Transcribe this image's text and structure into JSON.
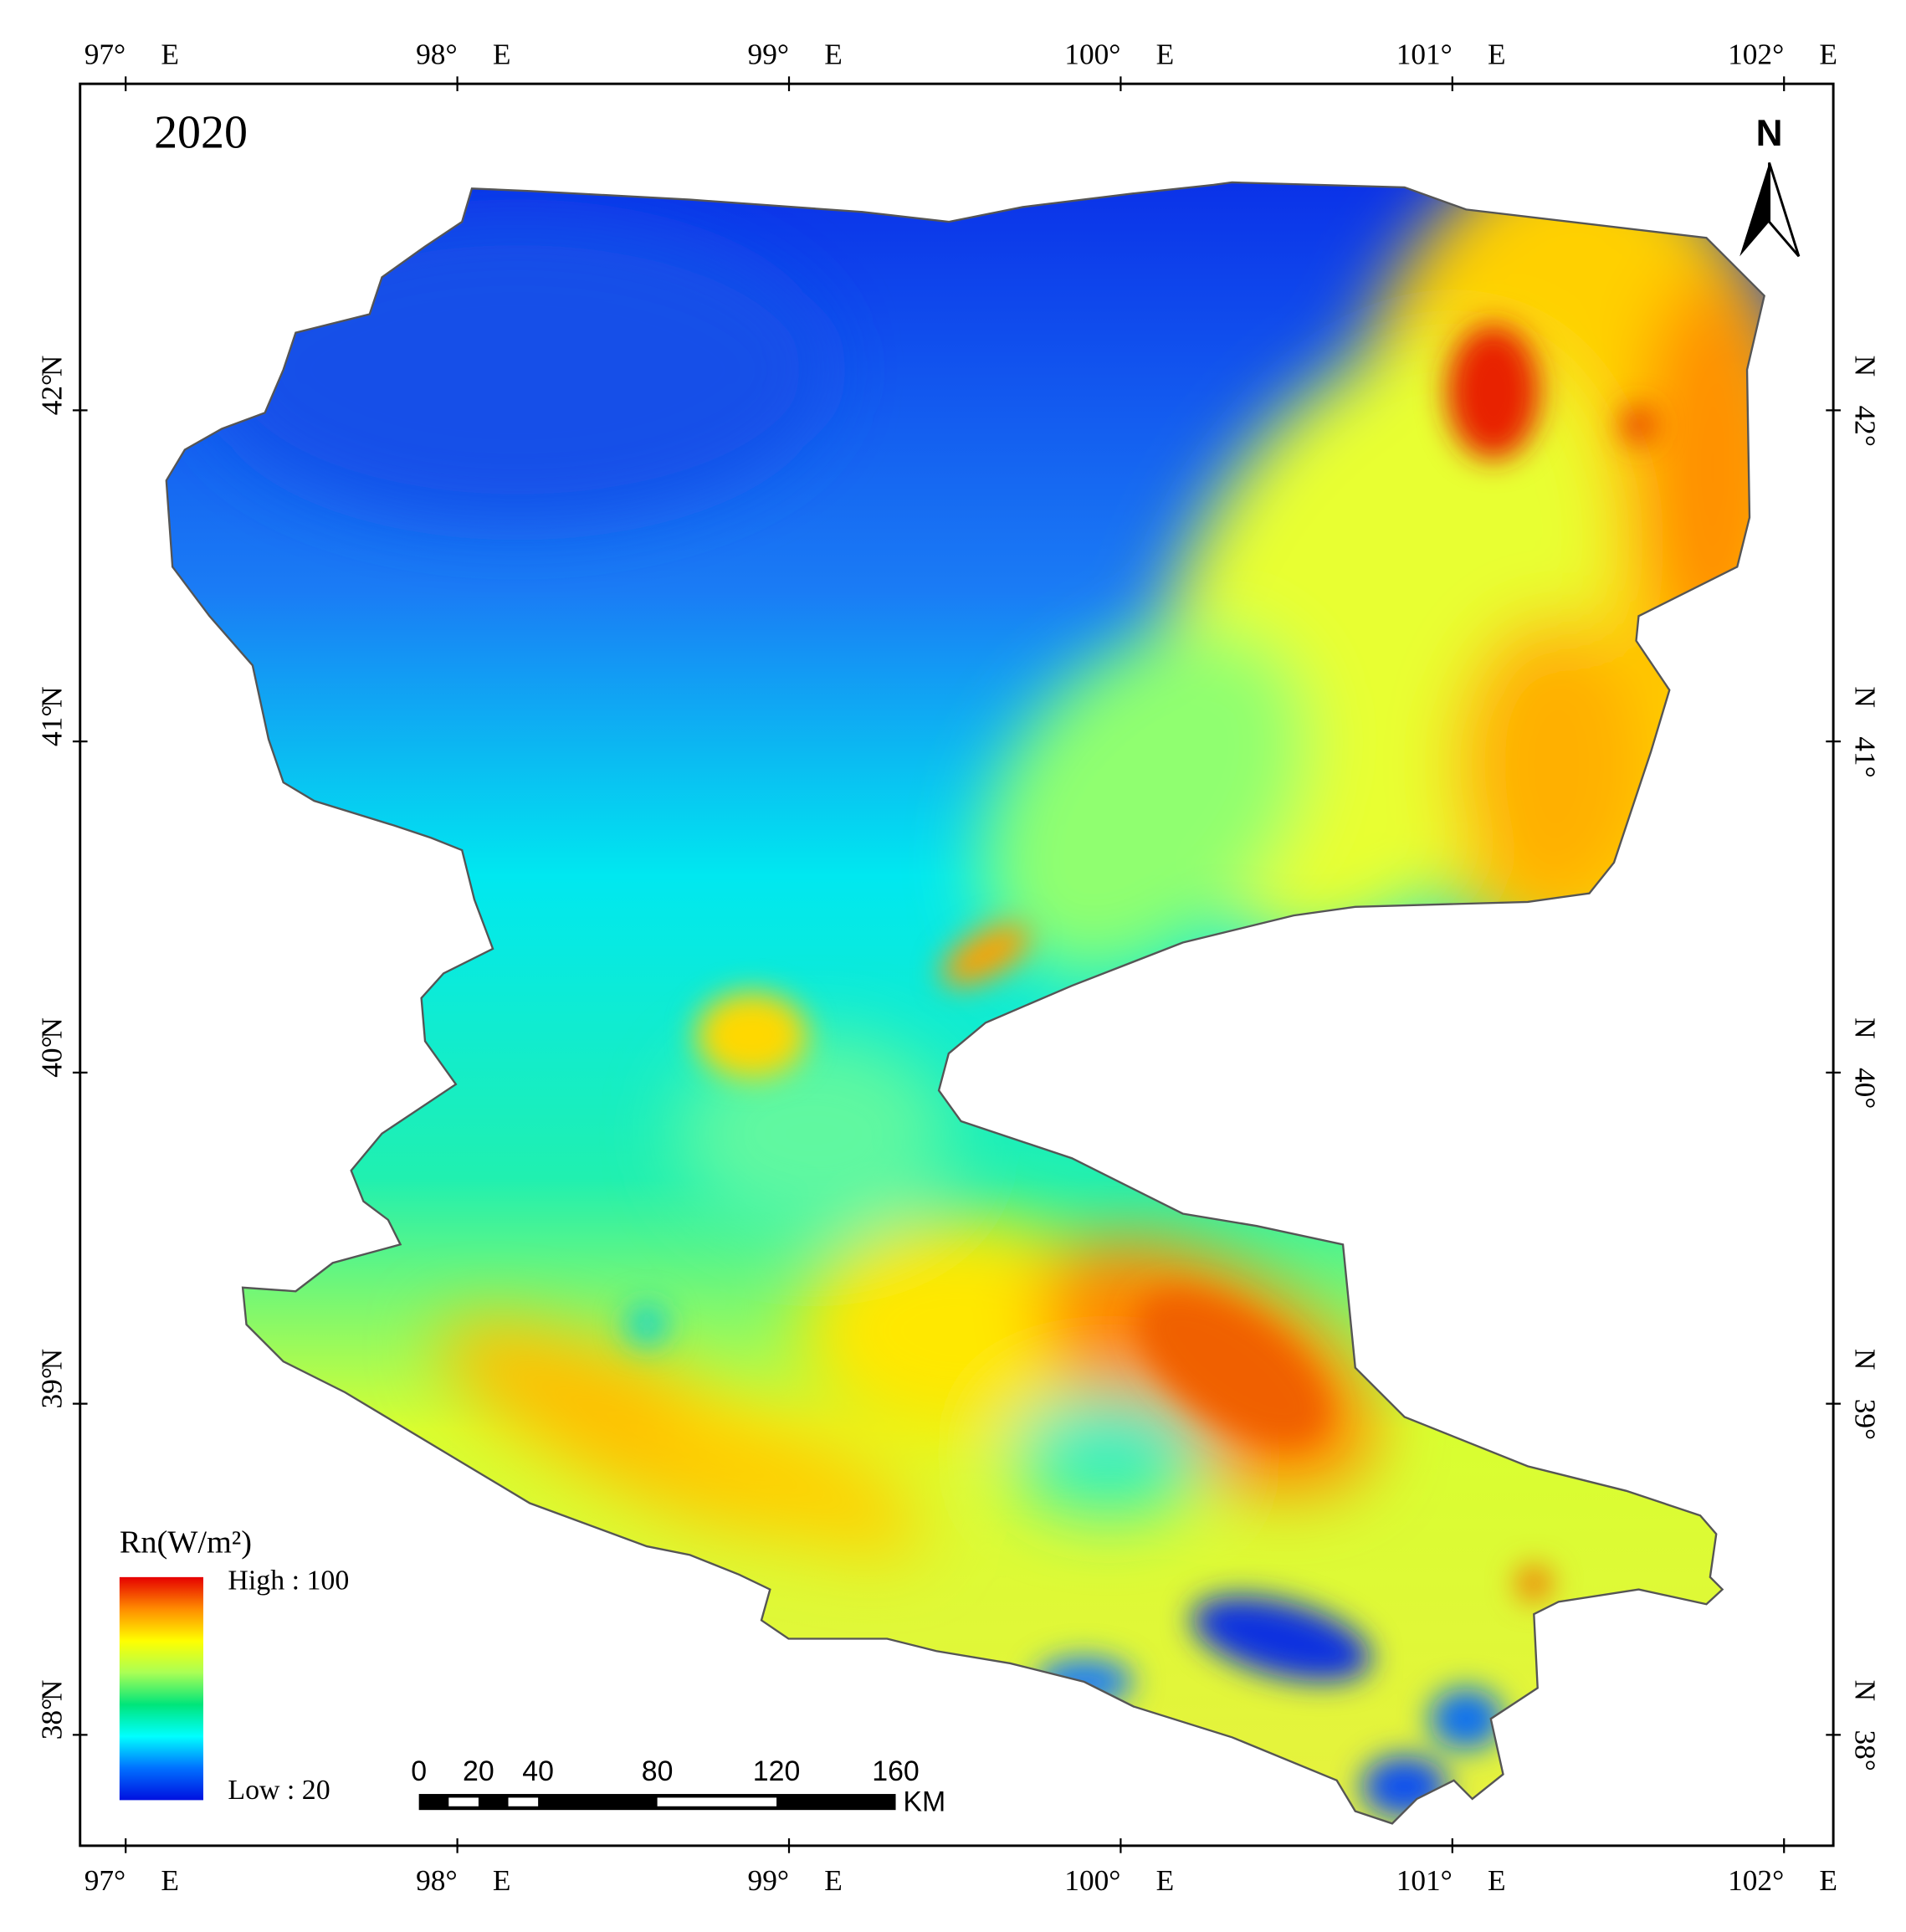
{
  "title": "2020",
  "north_arrow": "N",
  "lon_ticks": [
    {
      "value": 97,
      "label": "97°"
    },
    {
      "value": 98,
      "label": "98°"
    },
    {
      "value": 99,
      "label": "99°"
    },
    {
      "value": 100,
      "label": "100°"
    },
    {
      "value": 101,
      "label": "101°"
    },
    {
      "value": 102,
      "label": "102°"
    }
  ],
  "lon_hemisphere": "E",
  "lat_ticks": [
    {
      "value": 42,
      "label": "42°"
    },
    {
      "value": 41,
      "label": "41°"
    },
    {
      "value": 40,
      "label": "40°"
    },
    {
      "value": 39,
      "label": "39°"
    },
    {
      "value": 38,
      "label": "38°"
    }
  ],
  "lat_hemisphere": "N",
  "legend": {
    "title": "Rn(W/m²)",
    "high_label": "High : 100",
    "low_label": "Low : 20",
    "color_ramp": [
      "#e60000",
      "#ff8c00",
      "#ffff00",
      "#aaff55",
      "#00e57a",
      "#00ffff",
      "#0070ff",
      "#0010e0"
    ]
  },
  "scale_bar": {
    "ticks": [
      0,
      20,
      40,
      80,
      120,
      160
    ],
    "unit": "KM"
  }
}
